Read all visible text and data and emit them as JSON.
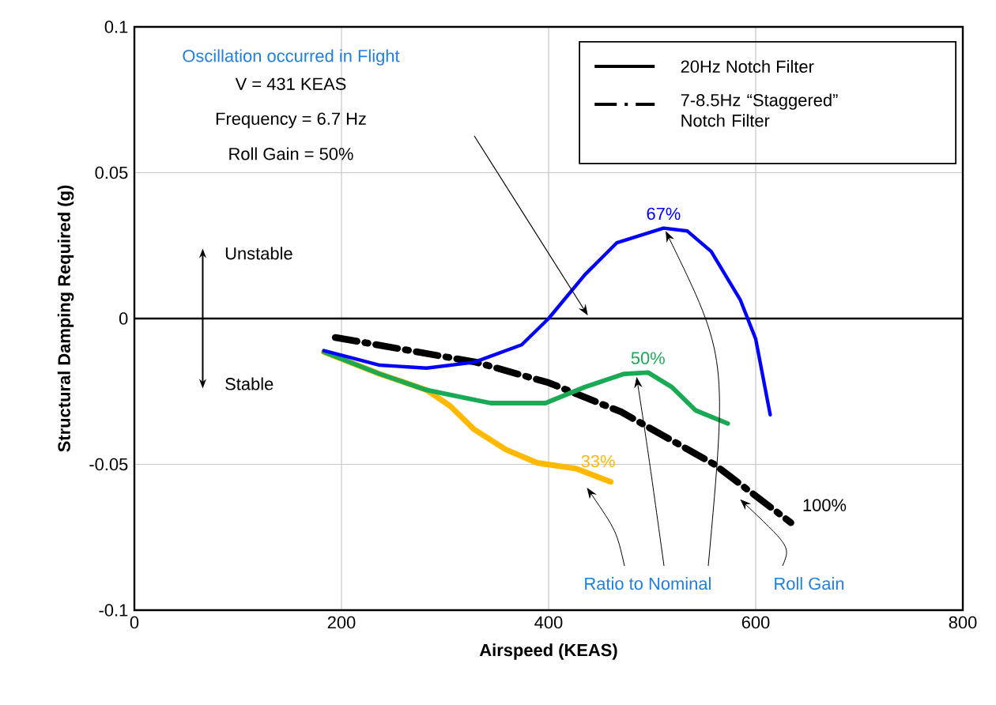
{
  "chart_data": {
    "type": "line",
    "xlabel": "Airspeed (KEAS)",
    "ylabel": "Structural Damping Required (g)",
    "xlim": [
      0,
      800
    ],
    "ylim": [
      -0.1,
      0.1
    ],
    "xticks": [
      0,
      200,
      400,
      600,
      800
    ],
    "yticks": [
      -0.1,
      -0.05,
      0,
      0.05,
      0.1
    ],
    "grid": true,
    "ref_lines": [
      {
        "axis": "y",
        "value": 0,
        "color": "#000000"
      }
    ],
    "series": [
      {
        "name": "67%",
        "color": "#0000ff",
        "line_style": "solid",
        "x": [
          183,
          237,
          282,
          328,
          374,
          400,
          435,
          466,
          511,
          534,
          557,
          585,
          600,
          614
        ],
        "values": [
          -0.011,
          -0.016,
          -0.017,
          -0.015,
          -0.009,
          0,
          0.015,
          0.026,
          0.031,
          0.03,
          0.023,
          0.0065,
          -0.007,
          -0.033
        ]
      },
      {
        "name": "50%",
        "color": "#1aaa55",
        "line_style": "solid",
        "x": [
          183,
          237,
          282,
          344,
          397,
          435,
          473,
          496,
          519,
          542,
          573
        ],
        "values": [
          -0.0115,
          -0.019,
          -0.0245,
          -0.029,
          -0.029,
          -0.0235,
          -0.019,
          -0.0185,
          -0.0235,
          -0.0315,
          -0.036
        ]
      },
      {
        "name": "33%",
        "color": "#ffb900",
        "line_style": "solid",
        "x": [
          183,
          237,
          282,
          305,
          328,
          359,
          389,
          427,
          460
        ],
        "values": [
          -0.0115,
          -0.019,
          -0.0245,
          -0.03,
          -0.038,
          -0.045,
          -0.0495,
          -0.0515,
          -0.056
        ]
      },
      {
        "name": "100%",
        "color": "#000000",
        "line_style": "dashdot",
        "x": [
          194,
          330,
          400,
          470,
          560,
          634
        ],
        "values": [
          -0.0065,
          -0.015,
          -0.022,
          -0.032,
          -0.05,
          -0.07
        ]
      }
    ],
    "annotations": [
      "20Hz Notch Filter",
      "7-8.5Hz “Staggered” Notch Filter",
      "Oscillation occurred in Flight",
      "V = 431 KEAS",
      "Frequency = 6.7 Hz",
      "Roll Gain = 50%",
      "Unstable",
      "Stable",
      "Ratio to Nominal",
      "Roll Gain"
    ]
  }
}
